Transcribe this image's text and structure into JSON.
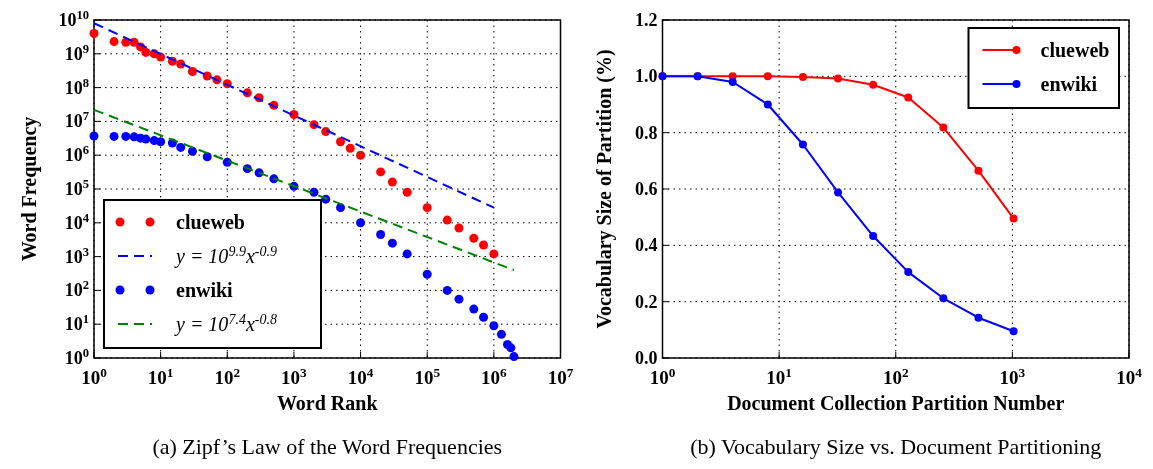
{
  "chart_data": [
    {
      "type": "scatter",
      "title": "(a) Zipf’s Law of the Word Frequencies",
      "xlabel": "Word Rank",
      "ylabel": "Word Frequency",
      "log": "xy",
      "grid": true,
      "legend": "bottom left",
      "marker": "circle",
      "xlim": [
        1,
        10000000
      ],
      "ylim": [
        1,
        10000000000
      ],
      "xticks": [
        {
          "value": 1,
          "label": "10$^{0}$"
        },
        {
          "value": 10,
          "label": "10$^{1}$"
        },
        {
          "value": 100,
          "label": "10$^{2}$"
        },
        {
          "value": 1000,
          "label": "10$^{3}$"
        },
        {
          "value": 10000,
          "label": "10$^{4}$"
        },
        {
          "value": 100000,
          "label": "10$^{5}$"
        },
        {
          "value": 1000000,
          "label": "10$^{6}$"
        },
        {
          "value": 10000000,
          "label": "10$^{7}$"
        }
      ],
      "yticks": [
        {
          "value": 1,
          "label": "10$^{0}$"
        },
        {
          "value": 10,
          "label": "10$^{1}$"
        },
        {
          "value": 100,
          "label": "10$^{2}$"
        },
        {
          "value": 1000,
          "label": "10$^{3}$"
        },
        {
          "value": 10000,
          "label": "10$^{4}$"
        },
        {
          "value": 100000,
          "label": "10$^{5}$"
        },
        {
          "value": 1000000,
          "label": "10$^{6}$"
        },
        {
          "value": 10000000,
          "label": "10$^{7}$"
        },
        {
          "value": 100000000,
          "label": "10$^{8}$"
        },
        {
          "value": 1000000000,
          "label": "10$^{9}$"
        },
        {
          "value": 10000000000,
          "label": "10$^{10}$"
        }
      ],
      "series": [
        {
          "name": "clueweb",
          "type": "scatter",
          "color": "#ff0000",
          "x": [
            1,
            2,
            3,
            4,
            5,
            6,
            8,
            10,
            15,
            20,
            30,
            50,
            70,
            100,
            200,
            300,
            500,
            1000,
            2000,
            3000,
            5000,
            7000,
            10000,
            20000,
            30000,
            50000,
            100000,
            200000,
            300000,
            500000,
            700000,
            1000000
          ],
          "values": [
            4000000000,
            2300000000,
            2200000000,
            2200000000,
            1600000000,
            1100000000,
            1000000000,
            800000000,
            600000000,
            500000000,
            300000000,
            220000000,
            170000000,
            130000000,
            70000000,
            50000000,
            30000000,
            16000000,
            8000000,
            5000000,
            2500000,
            1600000,
            1000000,
            320000,
            160000,
            80000,
            28000,
            12000,
            7000,
            3500,
            2200,
            1200
          ]
        },
        {
          "name": "y = 10$^{9.9}$x$^{-0.9}$",
          "type": "line",
          "line_style": "dashed",
          "marker": "none",
          "color": "#0000ff",
          "x": [
            1,
            1000000
          ],
          "values": [
            8000000000,
            28000
          ]
        },
        {
          "name": "enwiki",
          "type": "scatter",
          "color": "#0000ff",
          "x": [
            1,
            2,
            3,
            4,
            5,
            6,
            8,
            10,
            15,
            20,
            30,
            50,
            100,
            200,
            300,
            500,
            1000,
            2000,
            3000,
            5000,
            10000,
            20000,
            30000,
            50000,
            100000,
            200000,
            300000,
            500000,
            700000,
            1000000,
            1300000,
            1600000,
            1800000,
            2000000
          ],
          "values": [
            3700000,
            3600000,
            3600000,
            3500000,
            3200000,
            3000000,
            2700000,
            2500000,
            2300000,
            1700000,
            1300000,
            900000,
            620000,
            400000,
            300000,
            200000,
            120000,
            80000,
            50000,
            28000,
            10000,
            4500,
            2500,
            1200,
            300,
            100,
            55,
            28,
            16,
            9,
            5,
            2.5,
            2,
            1.1
          ]
        },
        {
          "name": "y = 10$^{7.4}$x$^{-0.8}$",
          "type": "line",
          "line_style": "dashed",
          "marker": "none",
          "color": "#008000",
          "x": [
            1,
            2000000
          ],
          "values": [
            22000000,
            400
          ]
        }
      ]
    },
    {
      "type": "line",
      "title": "(b) Vocabulary Size vs. Document Partitioning",
      "xlabel": "Document Collection Partition Number",
      "ylabel": "Vocabulary Size of Partition (%)",
      "log": "x",
      "grid": true,
      "legend": "top right",
      "marker": "circle",
      "line_style": "solid",
      "xlim": [
        1,
        10000
      ],
      "ylim": [
        0,
        1.2
      ],
      "xticks": [
        {
          "value": 1,
          "label": "10$^{0}$"
        },
        {
          "value": 10,
          "label": "10$^{1}$"
        },
        {
          "value": 100,
          "label": "10$^{2}$"
        },
        {
          "value": 1000,
          "label": "10$^{3}$"
        },
        {
          "value": 10000,
          "label": "10$^{4}$"
        }
      ],
      "yticks": [
        {
          "value": 0,
          "label": "0.0"
        },
        {
          "value": 0.2,
          "label": "0.2"
        },
        {
          "value": 0.4,
          "label": "0.4"
        },
        {
          "value": 0.6,
          "label": "0.6"
        },
        {
          "value": 0.8,
          "label": "0.8"
        },
        {
          "value": 1,
          "label": "1.0"
        },
        {
          "value": 1.2,
          "label": "1.2"
        }
      ],
      "x": [
        1,
        2,
        4,
        8,
        16,
        32,
        64,
        128,
        256,
        512,
        1024
      ],
      "series": [
        {
          "name": "clueweb",
          "color": "#ff0000",
          "values": [
            1.0,
            1.0,
            1.0,
            1.0,
            0.998,
            0.992,
            0.97,
            0.925,
            0.818,
            0.665,
            0.495
          ]
        },
        {
          "name": "enwiki",
          "color": "#0000ff",
          "values": [
            1.0,
            1.0,
            0.98,
            0.9,
            0.758,
            0.588,
            0.433,
            0.305,
            0.212,
            0.143,
            0.095
          ]
        }
      ]
    }
  ]
}
